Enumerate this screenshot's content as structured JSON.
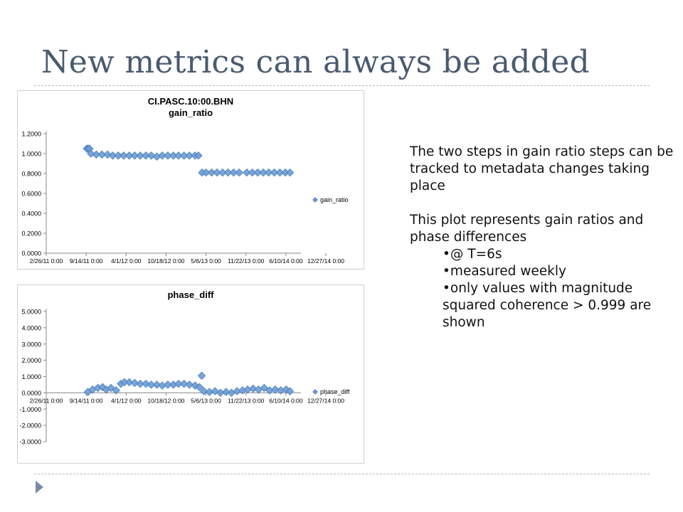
{
  "slide": {
    "title": "New metrics can always be added"
  },
  "text": {
    "para1": "The two steps in gain ratio steps can be tracked to metadata changes taking place",
    "para2": "This plot represents gain ratios and phase differences",
    "bullets": [
      "@ T=6s",
      "measured weekly",
      "only values with magnitude squared coherence > 0.999 are shown"
    ]
  },
  "colors": {
    "marker": "#6b9bd2",
    "marker_stroke": "#4a7fbf",
    "title_text": "#4a5a6e",
    "rule": "#aebccb"
  },
  "chart_data": [
    {
      "type": "scatter",
      "title": "CI.PASC.10:00.BHN",
      "subtitle": "gain_ratio",
      "xlabel": "",
      "ylabel": "",
      "legend": "right",
      "grid": false,
      "x_ticks": [
        "2/26/11 0:00",
        "9/14/11 0:00",
        "4/1/12 0:00",
        "10/18/12 0:00",
        "5/6/13 0:00",
        "11/22/13 0:00",
        "6/10/14 0:00",
        "12/27/14 0:00"
      ],
      "y_ticks": [
        "0.0000",
        "0.2000",
        "0.4000",
        "0.6000",
        "0.8000",
        "1.0000",
        "1.2000"
      ],
      "xlim": [
        "2011-02-26",
        "2015-01-10"
      ],
      "ylim": [
        0,
        1.2
      ],
      "series": [
        {
          "name": "gain_ratio",
          "points": [
            {
              "x": "2011-10-10",
              "y": 1.05
            },
            {
              "x": "2011-10-17",
              "y": 1.05
            },
            {
              "x": "2011-10-24",
              "y": 1.05
            },
            {
              "x": "2011-11-01",
              "y": 1.0
            },
            {
              "x": "2011-12-01",
              "y": 0.99
            },
            {
              "x": "2012-01-01",
              "y": 0.99
            },
            {
              "x": "2012-02-01",
              "y": 0.99
            },
            {
              "x": "2012-03-01",
              "y": 0.98
            },
            {
              "x": "2012-04-01",
              "y": 0.98
            },
            {
              "x": "2012-05-01",
              "y": 0.98
            },
            {
              "x": "2012-06-01",
              "y": 0.98
            },
            {
              "x": "2012-07-01",
              "y": 0.98
            },
            {
              "x": "2012-08-01",
              "y": 0.98
            },
            {
              "x": "2012-09-01",
              "y": 0.98
            },
            {
              "x": "2012-10-01",
              "y": 0.98
            },
            {
              "x": "2012-11-01",
              "y": 0.97
            },
            {
              "x": "2012-12-01",
              "y": 0.98
            },
            {
              "x": "2013-01-01",
              "y": 0.98
            },
            {
              "x": "2013-02-01",
              "y": 0.98
            },
            {
              "x": "2013-03-01",
              "y": 0.98
            },
            {
              "x": "2013-04-01",
              "y": 0.98
            },
            {
              "x": "2013-05-01",
              "y": 0.98
            },
            {
              "x": "2013-06-01",
              "y": 0.98
            },
            {
              "x": "2013-06-20",
              "y": 0.98
            },
            {
              "x": "2013-07-10",
              "y": 0.81
            },
            {
              "x": "2013-08-01",
              "y": 0.81
            },
            {
              "x": "2013-09-01",
              "y": 0.81
            },
            {
              "x": "2013-10-01",
              "y": 0.81
            },
            {
              "x": "2013-11-01",
              "y": 0.81
            },
            {
              "x": "2013-12-01",
              "y": 0.81
            },
            {
              "x": "2014-01-01",
              "y": 0.81
            },
            {
              "x": "2014-02-01",
              "y": 0.81
            },
            {
              "x": "2014-03-15",
              "y": 0.81
            },
            {
              "x": "2014-04-15",
              "y": 0.81
            },
            {
              "x": "2014-05-15",
              "y": 0.81
            },
            {
              "x": "2014-06-15",
              "y": 0.81
            },
            {
              "x": "2014-07-15",
              "y": 0.81
            },
            {
              "x": "2014-08-15",
              "y": 0.81
            },
            {
              "x": "2014-09-15",
              "y": 0.81
            },
            {
              "x": "2014-10-15",
              "y": 0.81
            },
            {
              "x": "2014-11-10",
              "y": 0.81
            }
          ]
        }
      ]
    },
    {
      "type": "scatter",
      "title": "phase_diff",
      "xlabel": "",
      "ylabel": "",
      "legend": "right",
      "grid": false,
      "x_ticks": [
        "2/26/11 0:00",
        "9/14/11 0:00",
        "4/1/12 0:00",
        "10/18/12 0:00",
        "5/6/13 0:00",
        "11/22/13 0:00",
        "6/10/14 0:00",
        "12/27/14 0:00"
      ],
      "y_ticks": [
        "-3.0000",
        "-2.0000",
        "-1.0000",
        "0.0000",
        "1.0000",
        "2.0000",
        "3.0000",
        "4.0000",
        "5.0000"
      ],
      "xlim": [
        "2011-02-26",
        "2015-01-10"
      ],
      "ylim": [
        -3,
        5
      ],
      "series": [
        {
          "name": "phase_diff",
          "points": [
            {
              "x": "2011-10-15",
              "y": 0.05
            },
            {
              "x": "2011-11-10",
              "y": 0.2
            },
            {
              "x": "2011-12-10",
              "y": 0.3
            },
            {
              "x": "2012-01-05",
              "y": 0.35
            },
            {
              "x": "2012-01-25",
              "y": 0.2
            },
            {
              "x": "2012-02-20",
              "y": 0.3
            },
            {
              "x": "2012-03-20",
              "y": 0.15
            },
            {
              "x": "2012-04-15",
              "y": 0.55
            },
            {
              "x": "2012-05-05",
              "y": 0.65
            },
            {
              "x": "2012-06-01",
              "y": 0.65
            },
            {
              "x": "2012-07-01",
              "y": 0.6
            },
            {
              "x": "2012-08-01",
              "y": 0.55
            },
            {
              "x": "2012-09-01",
              "y": 0.55
            },
            {
              "x": "2012-10-01",
              "y": 0.5
            },
            {
              "x": "2012-11-01",
              "y": 0.5
            },
            {
              "x": "2012-12-01",
              "y": 0.45
            },
            {
              "x": "2013-01-01",
              "y": 0.5
            },
            {
              "x": "2013-02-01",
              "y": 0.5
            },
            {
              "x": "2013-03-01",
              "y": 0.55
            },
            {
              "x": "2013-04-01",
              "y": 0.55
            },
            {
              "x": "2013-05-01",
              "y": 0.5
            },
            {
              "x": "2013-06-01",
              "y": 0.45
            },
            {
              "x": "2013-06-25",
              "y": 0.35
            },
            {
              "x": "2013-07-08",
              "y": 1.05
            },
            {
              "x": "2013-07-20",
              "y": 0.1
            },
            {
              "x": "2013-08-20",
              "y": 0.05
            },
            {
              "x": "2013-09-20",
              "y": 0.1
            },
            {
              "x": "2013-10-20",
              "y": 0.0
            },
            {
              "x": "2013-11-20",
              "y": 0.05
            },
            {
              "x": "2013-12-20",
              "y": 0.0
            },
            {
              "x": "2014-01-20",
              "y": 0.1
            },
            {
              "x": "2014-02-20",
              "y": 0.15
            },
            {
              "x": "2014-03-20",
              "y": 0.2
            },
            {
              "x": "2014-04-20",
              "y": 0.25
            },
            {
              "x": "2014-05-20",
              "y": 0.2
            },
            {
              "x": "2014-06-20",
              "y": 0.3
            },
            {
              "x": "2014-07-20",
              "y": 0.15
            },
            {
              "x": "2014-08-20",
              "y": 0.2
            },
            {
              "x": "2014-09-20",
              "y": 0.15
            },
            {
              "x": "2014-10-20",
              "y": 0.2
            },
            {
              "x": "2014-11-10",
              "y": 0.1
            }
          ]
        }
      ]
    }
  ]
}
